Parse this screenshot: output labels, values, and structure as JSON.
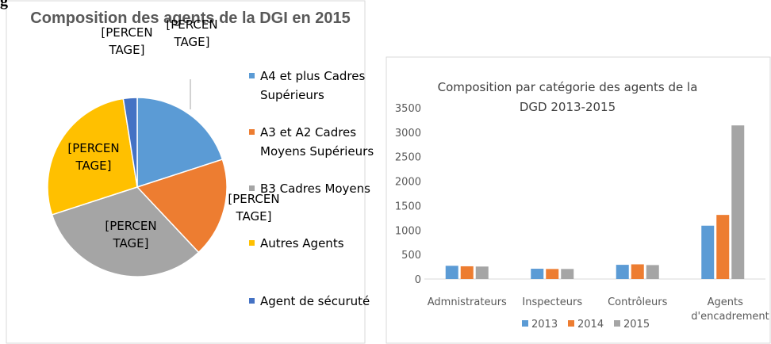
{
  "header_fragment": "g",
  "chart_data": [
    {
      "type": "pie",
      "title": "Composition  des agents de la DGI en 2015",
      "categories": [
        "A4 et plus Cadres Supérieurs",
        "A3 et A2 Cadres Moyens Supérieurs",
        "B3 Cadres Moyens",
        "Autres Agents",
        "Agent de sécuruté"
      ],
      "values": [
        20,
        18,
        32,
        27.5,
        2.5
      ],
      "data_labels": [
        "[PERCENTAGE]",
        "[PERCENTAGE]",
        "[PERCENTAGE]",
        "[PERCENTAGE]",
        "[PERCENTAGE]"
      ],
      "colors": [
        "#5b9bd5",
        "#ed7d31",
        "#a5a5a5",
        "#ffc000",
        "#4472c4"
      ]
    },
    {
      "type": "bar",
      "title": "Composition par catégorie des agents de la DGD 2013-2015",
      "categories": [
        "Admnistrateurs",
        "Inspecteurs",
        "Contrôleurs",
        "Agents d'encadrement"
      ],
      "series": [
        {
          "name": "2013",
          "color": "#5b9bd5",
          "values": [
            270,
            210,
            290,
            1090
          ]
        },
        {
          "name": "2014",
          "color": "#ed7d31",
          "values": [
            260,
            205,
            300,
            1310
          ]
        },
        {
          "name": "2015",
          "color": "#a5a5a5",
          "values": [
            255,
            205,
            285,
            3140
          ]
        }
      ],
      "ylim": [
        0,
        3500
      ],
      "yticks": [
        0,
        500,
        1000,
        1500,
        2000,
        2500,
        3000,
        3500
      ],
      "grid": false,
      "legend": "bottom"
    }
  ]
}
